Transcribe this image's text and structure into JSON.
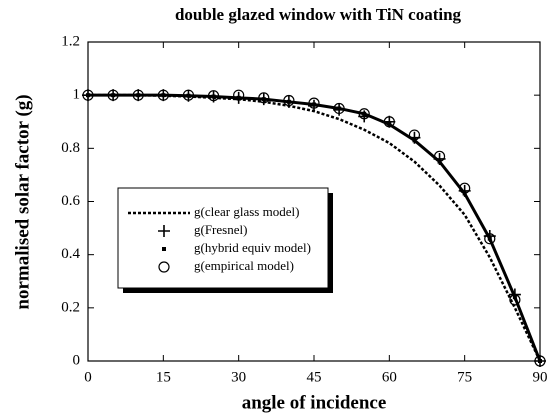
{
  "chart_data": {
    "type": "line",
    "title": "double glazed window with TiN coating",
    "xlabel": "angle of incidence",
    "ylabel": "normalised solar factor (g)",
    "x": [
      0,
      5,
      10,
      15,
      20,
      25,
      30,
      35,
      40,
      45,
      50,
      55,
      60,
      65,
      70,
      75,
      80,
      85,
      90
    ],
    "xlim": [
      0,
      90
    ],
    "xticks": [
      0,
      15,
      30,
      45,
      60,
      75,
      90
    ],
    "ylim": [
      0,
      1.2
    ],
    "yticks": [
      0,
      0.2,
      0.4,
      0.6,
      0.8,
      1,
      1.2
    ],
    "series": [
      {
        "name": "g(clear glass model)",
        "color": "#000000",
        "marker": "dashed",
        "values": [
          1,
          1,
          1,
          0.998,
          0.995,
          0.99,
          0.985,
          0.975,
          0.96,
          0.94,
          0.91,
          0.87,
          0.82,
          0.75,
          0.66,
          0.55,
          0.39,
          0.2,
          0
        ]
      },
      {
        "name": "g(Fresnel)",
        "color": "#000000",
        "marker": "plus",
        "values": [
          1,
          1,
          1,
          1,
          0.998,
          0.995,
          0.99,
          0.985,
          0.975,
          0.96,
          0.945,
          0.92,
          0.9,
          0.84,
          0.76,
          0.64,
          0.47,
          0.25,
          0
        ]
      },
      {
        "name": "g(hybrid equiv model)",
        "color": "#000000",
        "marker": "square",
        "values": [
          1,
          1,
          1,
          1,
          0.998,
          0.995,
          0.99,
          0.985,
          0.975,
          0.965,
          0.95,
          0.93,
          0.89,
          0.83,
          0.75,
          0.63,
          0.46,
          0.24,
          0
        ]
      },
      {
        "name": "g(empirical model)",
        "color": "#000000",
        "marker": "circle",
        "values": [
          1,
          1,
          1,
          1,
          1,
          0.998,
          1,
          0.99,
          0.98,
          0.97,
          0.95,
          0.93,
          0.9,
          0.85,
          0.77,
          0.65,
          0.46,
          0.23,
          0
        ]
      }
    ]
  }
}
